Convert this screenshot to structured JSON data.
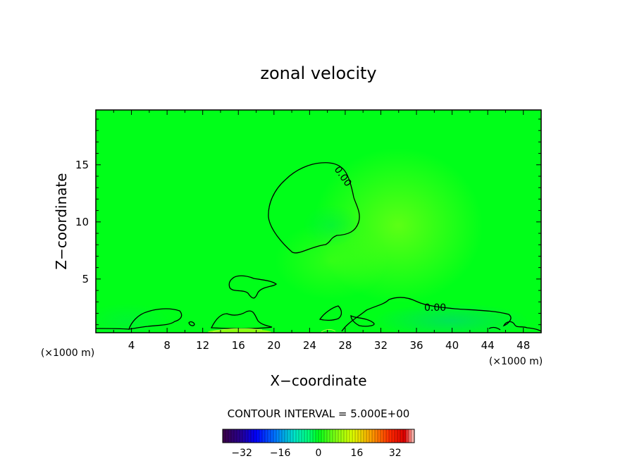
{
  "chart_data": {
    "type": "heatmap",
    "title": "zonal velocity",
    "xlabel": "X−coordinate",
    "ylabel": "Z−coordinate",
    "x_unit_left": "(×1000 m)",
    "x_unit_right": "(×1000 m)",
    "xlim": [
      0,
      50
    ],
    "ylim": [
      0.3,
      19.8
    ],
    "x_ticks": [
      "4",
      "8",
      "12",
      "16",
      "20",
      "24",
      "28",
      "32",
      "36",
      "40",
      "44",
      "48"
    ],
    "y_ticks": [
      "5",
      "10",
      "15"
    ],
    "grid": false,
    "contour_interval_label": "CONTOUR INTERVAL = 5.000E+00",
    "contour_labels": [
      "0.00",
      "0.00"
    ],
    "colorbar": {
      "range": [
        -40,
        40
      ],
      "tick_labels": [
        "−32",
        "−16",
        "0",
        "16",
        "32"
      ],
      "tick_values": [
        -32,
        -16,
        0,
        16,
        32
      ]
    },
    "field_description_values": {
      "background": 0,
      "max_positive_region": {
        "x": 34,
        "z": 9,
        "value": 3
      },
      "near_surface_positive": {
        "x": 16,
        "z": 0.3,
        "value": 5
      }
    },
    "colors": {
      "plot_background": "#00ff19",
      "warm_patch": "#6cff14",
      "cool_patch": "#00e857",
      "contour": "#000000"
    }
  }
}
